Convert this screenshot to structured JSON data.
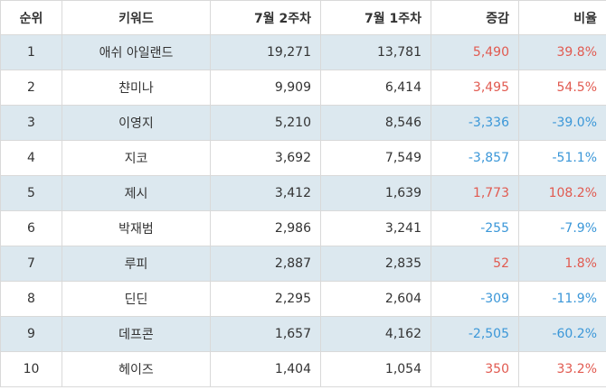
{
  "table": {
    "headers": {
      "rank": "순위",
      "keyword": "키워드",
      "week2": "7월 2주차",
      "week1": "7월 1주차",
      "change": "증감",
      "ratio": "비율"
    },
    "rows": [
      {
        "rank": "1",
        "keyword": "애쉬 아일랜드",
        "week2": "19,271",
        "week1": "13,781",
        "change": "5,490",
        "ratio": "39.8%",
        "trend": "pos"
      },
      {
        "rank": "2",
        "keyword": "챤미나",
        "week2": "9,909",
        "week1": "6,414",
        "change": "3,495",
        "ratio": "54.5%",
        "trend": "pos"
      },
      {
        "rank": "3",
        "keyword": "이영지",
        "week2": "5,210",
        "week1": "8,546",
        "change": "-3,336",
        "ratio": "-39.0%",
        "trend": "neg"
      },
      {
        "rank": "4",
        "keyword": "지코",
        "week2": "3,692",
        "week1": "7,549",
        "change": "-3,857",
        "ratio": "-51.1%",
        "trend": "neg"
      },
      {
        "rank": "5",
        "keyword": "제시",
        "week2": "3,412",
        "week1": "1,639",
        "change": "1,773",
        "ratio": "108.2%",
        "trend": "pos"
      },
      {
        "rank": "6",
        "keyword": "박재범",
        "week2": "2,986",
        "week1": "3,241",
        "change": "-255",
        "ratio": "-7.9%",
        "trend": "neg"
      },
      {
        "rank": "7",
        "keyword": "루피",
        "week2": "2,887",
        "week1": "2,835",
        "change": "52",
        "ratio": "1.8%",
        "trend": "pos"
      },
      {
        "rank": "8",
        "keyword": "딘딘",
        "week2": "2,295",
        "week1": "2,604",
        "change": "-309",
        "ratio": "-11.9%",
        "trend": "neg"
      },
      {
        "rank": "9",
        "keyword": "데프콘",
        "week2": "1,657",
        "week1": "4,162",
        "change": "-2,505",
        "ratio": "-60.2%",
        "trend": "neg"
      },
      {
        "rank": "10",
        "keyword": "헤이즈",
        "week2": "1,404",
        "week1": "1,054",
        "change": "350",
        "ratio": "33.2%",
        "trend": "pos"
      }
    ]
  },
  "colors": {
    "positive": "#e15a50",
    "negative": "#3b97d8",
    "shaded_row": "#dce8ef",
    "border": "#d9d9d9"
  }
}
